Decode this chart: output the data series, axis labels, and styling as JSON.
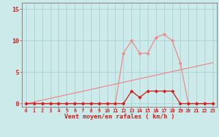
{
  "x_all": [
    0,
    1,
    2,
    3,
    4,
    5,
    6,
    7,
    8,
    9,
    10,
    11,
    12,
    13,
    14,
    15,
    16,
    17,
    18,
    19,
    20,
    21,
    22,
    23
  ],
  "rafales": [
    0,
    0,
    0,
    0,
    0,
    0,
    0,
    0,
    0,
    0,
    0,
    0,
    8,
    10,
    8,
    8,
    10.5,
    11,
    10,
    6.5,
    0,
    0,
    0,
    0
  ],
  "vent_moyen": [
    0,
    0,
    0,
    0,
    0,
    0,
    0,
    0,
    0,
    0,
    0,
    0,
    0,
    2,
    1,
    2,
    2,
    2,
    2,
    0,
    0,
    0,
    0,
    0
  ],
  "trend_x": [
    0,
    23
  ],
  "trend_y": [
    0,
    6.5
  ],
  "xlabel": "Vent moyen/en rafales ( km/h )",
  "ylim": [
    -0.5,
    16
  ],
  "xlim": [
    -0.5,
    23.5
  ],
  "yticks": [
    0,
    5,
    10,
    15
  ],
  "xticks": [
    0,
    1,
    2,
    3,
    4,
    5,
    6,
    7,
    8,
    9,
    10,
    11,
    12,
    13,
    14,
    15,
    16,
    17,
    18,
    19,
    20,
    21,
    22,
    23
  ],
  "bg_color": "#cceaea",
  "grid_color": "#aacfcf",
  "rafales_color": "#e89090",
  "vent_moyen_color": "#cc2020",
  "trend_color": "#e89090",
  "marker_size": 2.5,
  "line_width": 1.0,
  "xlabel_color": "#cc2020",
  "tick_color": "#cc2020",
  "axis_color": "#888888"
}
